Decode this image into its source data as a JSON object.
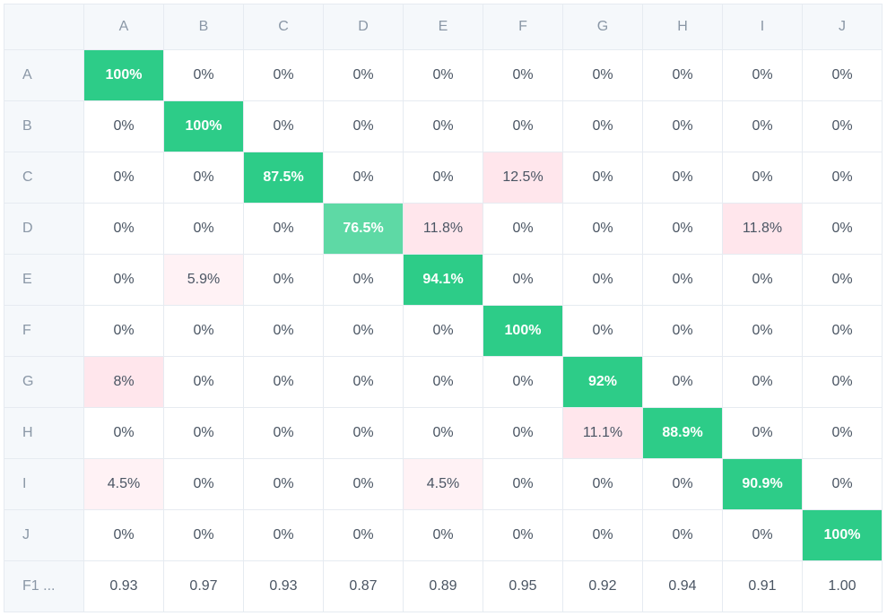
{
  "matrix": {
    "labels": [
      "A",
      "B",
      "C",
      "D",
      "E",
      "F",
      "G",
      "H",
      "I",
      "J"
    ],
    "rows": [
      [
        "100%",
        "0%",
        "0%",
        "0%",
        "0%",
        "0%",
        "0%",
        "0%",
        "0%",
        "0%"
      ],
      [
        "0%",
        "100%",
        "0%",
        "0%",
        "0%",
        "0%",
        "0%",
        "0%",
        "0%",
        "0%"
      ],
      [
        "0%",
        "0%",
        "87.5%",
        "0%",
        "0%",
        "12.5%",
        "0%",
        "0%",
        "0%",
        "0%"
      ],
      [
        "0%",
        "0%",
        "0%",
        "76.5%",
        "11.8%",
        "0%",
        "0%",
        "0%",
        "11.8%",
        "0%"
      ],
      [
        "0%",
        "5.9%",
        "0%",
        "0%",
        "94.1%",
        "0%",
        "0%",
        "0%",
        "0%",
        "0%"
      ],
      [
        "0%",
        "0%",
        "0%",
        "0%",
        "0%",
        "100%",
        "0%",
        "0%",
        "0%",
        "0%"
      ],
      [
        "8%",
        "0%",
        "0%",
        "0%",
        "0%",
        "0%",
        "92%",
        "0%",
        "0%",
        "0%"
      ],
      [
        "0%",
        "0%",
        "0%",
        "0%",
        "0%",
        "0%",
        "11.1%",
        "88.9%",
        "0%",
        "0%"
      ],
      [
        "4.5%",
        "0%",
        "0%",
        "0%",
        "4.5%",
        "0%",
        "0%",
        "0%",
        "90.9%",
        "0%"
      ],
      [
        "0%",
        "0%",
        "0%",
        "0%",
        "0%",
        "0%",
        "0%",
        "0%",
        "0%",
        "100%"
      ]
    ],
    "f1_label": "F1 ...",
    "f1_scores": [
      "0.93",
      "0.97",
      "0.93",
      "0.87",
      "0.89",
      "0.95",
      "0.92",
      "0.94",
      "0.91",
      "1.00"
    ]
  },
  "colors": {
    "diag_strong": "#2dcc88",
    "diag_light": "#5ed9a5",
    "offdiag": "#ffe6ec",
    "offdiag_faint": "#fff2f5"
  }
}
